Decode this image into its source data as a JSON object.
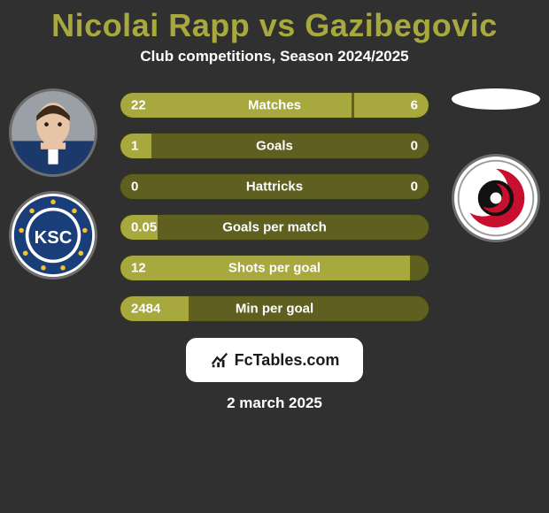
{
  "title": "Nicolai Rapp vs Gazibegovic",
  "subtitle": "Club competitions, Season 2024/2025",
  "date": "2 march 2025",
  "footer_brand": "FcTables.com",
  "colors": {
    "bg": "#303030",
    "accent": "#a7a83d",
    "bar_dark": "#5f6020",
    "text": "#ffffff",
    "avatar_border": "#6e6e6e"
  },
  "left_player": {
    "name": "Nicolai Rapp",
    "avatar": "photo",
    "club_logo": "ksc"
  },
  "right_player": {
    "name": "Gazibegovic",
    "avatar": "blank",
    "club_logo": "hurricane"
  },
  "bars": [
    {
      "label": "Matches",
      "left_val": "22",
      "right_val": "6",
      "left_pct": 75,
      "right_pct": 24
    },
    {
      "label": "Goals",
      "left_val": "1",
      "right_val": "0",
      "left_pct": 10,
      "right_pct": 0
    },
    {
      "label": "Hattricks",
      "left_val": "0",
      "right_val": "0",
      "left_pct": 0,
      "right_pct": 0
    },
    {
      "label": "Goals per match",
      "left_val": "0.05",
      "right_val": "",
      "left_pct": 12,
      "right_pct": 0
    },
    {
      "label": "Shots per goal",
      "left_val": "12",
      "right_val": "",
      "left_pct": 94,
      "right_pct": 0
    },
    {
      "label": "Min per goal",
      "left_val": "2484",
      "right_val": "",
      "left_pct": 22,
      "right_pct": 0
    }
  ]
}
